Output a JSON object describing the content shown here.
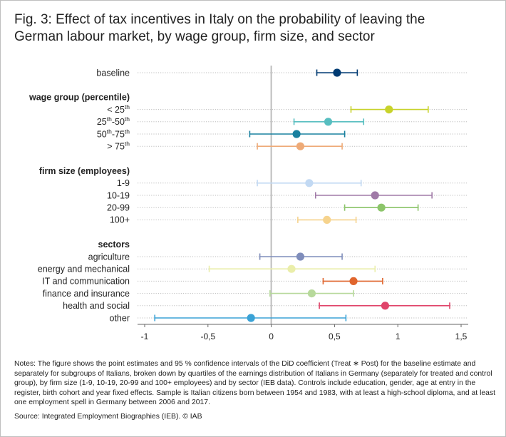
{
  "title_line1": "Fig. 3: Effect of tax incentives in Italy on the probability of leaving the",
  "title_line2": "German labour market, by wage group, firm size, and sector",
  "chart_data": {
    "type": "scatter",
    "subtype": "coefficient-plot-with-confidence-intervals",
    "xlim": [
      -1,
      1.5
    ],
    "x_ticks": [
      "-1",
      "-0,5",
      "0",
      "0,5",
      "1",
      "1,5"
    ],
    "x_tick_values": [
      -1,
      -0.5,
      0,
      0.5,
      1,
      1.5
    ],
    "reference_line_x": 0,
    "rows": [
      {
        "kind": "point",
        "label": "baseline",
        "estimate": 0.52,
        "ci_low": 0.36,
        "ci_high": 0.68,
        "color": "#003b73"
      },
      {
        "kind": "header",
        "label": "wage group (percentile)"
      },
      {
        "kind": "point",
        "label": "< 25",
        "sup": "th",
        "estimate": 0.93,
        "ci_low": 0.63,
        "ci_high": 1.24,
        "color": "#c8d32b"
      },
      {
        "kind": "point",
        "label": "25",
        "sup": "th",
        "label2": "-50",
        "sup2": "th",
        "estimate": 0.45,
        "ci_low": 0.18,
        "ci_high": 0.73,
        "color": "#57bec0"
      },
      {
        "kind": "point",
        "label": "50",
        "sup": "th",
        "label2": "-75",
        "sup2": "th",
        "estimate": 0.2,
        "ci_low": -0.17,
        "ci_high": 0.58,
        "color": "#19809f"
      },
      {
        "kind": "point",
        "label": "> 75",
        "sup": "th",
        "estimate": 0.23,
        "ci_low": -0.11,
        "ci_high": 0.56,
        "color": "#eeaa77"
      },
      {
        "kind": "header",
        "label": "firm size (employees)"
      },
      {
        "kind": "point",
        "label": "1-9",
        "estimate": 0.3,
        "ci_low": -0.11,
        "ci_high": 0.71,
        "color": "#c2d9f3"
      },
      {
        "kind": "point",
        "label": "10-19",
        "estimate": 0.82,
        "ci_low": 0.35,
        "ci_high": 1.27,
        "color": "#a07aa7"
      },
      {
        "kind": "point",
        "label": "20-99",
        "estimate": 0.87,
        "ci_low": 0.58,
        "ci_high": 1.16,
        "color": "#8cc56a"
      },
      {
        "kind": "point",
        "label": "100+",
        "estimate": 0.44,
        "ci_low": 0.21,
        "ci_high": 0.67,
        "color": "#f6d38d"
      },
      {
        "kind": "header",
        "label": "sectors"
      },
      {
        "kind": "point",
        "label": "agriculture",
        "estimate": 0.23,
        "ci_low": -0.09,
        "ci_high": 0.56,
        "color": "#7f8dbb"
      },
      {
        "kind": "point",
        "label": "energy and mechanical",
        "estimate": 0.16,
        "ci_low": -0.49,
        "ci_high": 0.82,
        "color": "#eaeeaa"
      },
      {
        "kind": "point",
        "label": "IT and communication",
        "estimate": 0.65,
        "ci_low": 0.41,
        "ci_high": 0.88,
        "color": "#e0652d"
      },
      {
        "kind": "point",
        "label": "finance and insurance",
        "estimate": 0.32,
        "ci_low": -0.01,
        "ci_high": 0.65,
        "color": "#b7d99b"
      },
      {
        "kind": "point",
        "label": "health and social",
        "estimate": 0.9,
        "ci_low": 0.38,
        "ci_high": 1.41,
        "color": "#e0446a"
      },
      {
        "kind": "point",
        "label": "other",
        "estimate": -0.16,
        "ci_low": -0.92,
        "ci_high": 0.59,
        "color": "#3aa2d6"
      }
    ]
  },
  "notes": "Notes: The figure shows the point estimates and 95 % confidence intervals of the DiD coefficient (Treat ∗ Post) for the baseline estimate and separately for subgroups of Italians, broken down by quartiles of the earnings distribution of Italians in Germany (separately for treated and control group), by firm size (1-9, 10-19, 20-99 and 100+ employees) and by sector (IEB data). Controls include education, gender, age at entry in the register, birth cohort and year fixed effects. Sample is Italian citizens born between 1954 and 1983, with at least a high-school diploma, and at least one employment spell in Germany between 2006 and 2017.",
  "source": "Source: Integrated Employment Biographies (IEB). © IAB",
  "colors": {
    "zero_line": "#bdbdbd",
    "grid": "#bdbdbd",
    "axis": "#666666"
  }
}
